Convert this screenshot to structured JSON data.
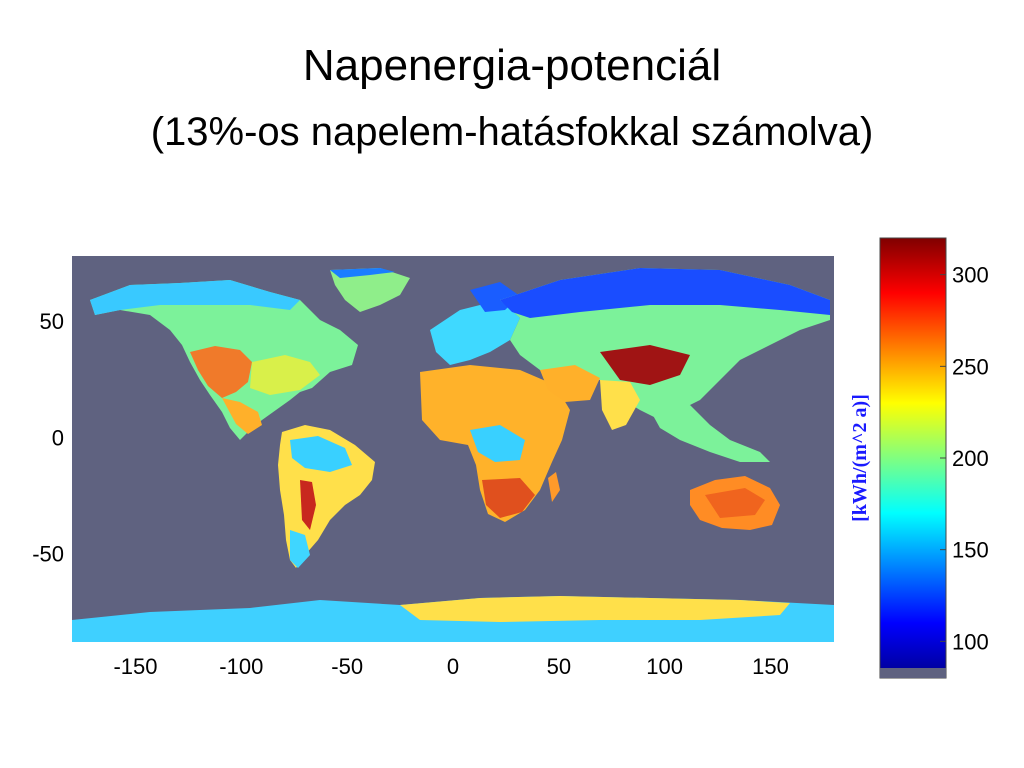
{
  "title": "Napenergia-potenciál",
  "subtitle": "(13%-os napelem-hatásfokkal számolva)",
  "colors": {
    "ocean": "#5f6280",
    "scale": [
      "#00008f",
      "#0000ff",
      "#0080ff",
      "#00ffff",
      "#80ff80",
      "#ffff00",
      "#ff8000",
      "#ff0000",
      "#800000"
    ]
  },
  "map": {
    "x_ticks": [
      "-150",
      "-100",
      "-50",
      "0",
      "50",
      "100",
      "150"
    ],
    "y_ticks": [
      "50",
      "0",
      "-50"
    ]
  },
  "colorbar": {
    "ticks": [
      "300",
      "250",
      "200",
      "150",
      "100"
    ],
    "unit_label": "[kWh/(m^2 a)]"
  }
}
